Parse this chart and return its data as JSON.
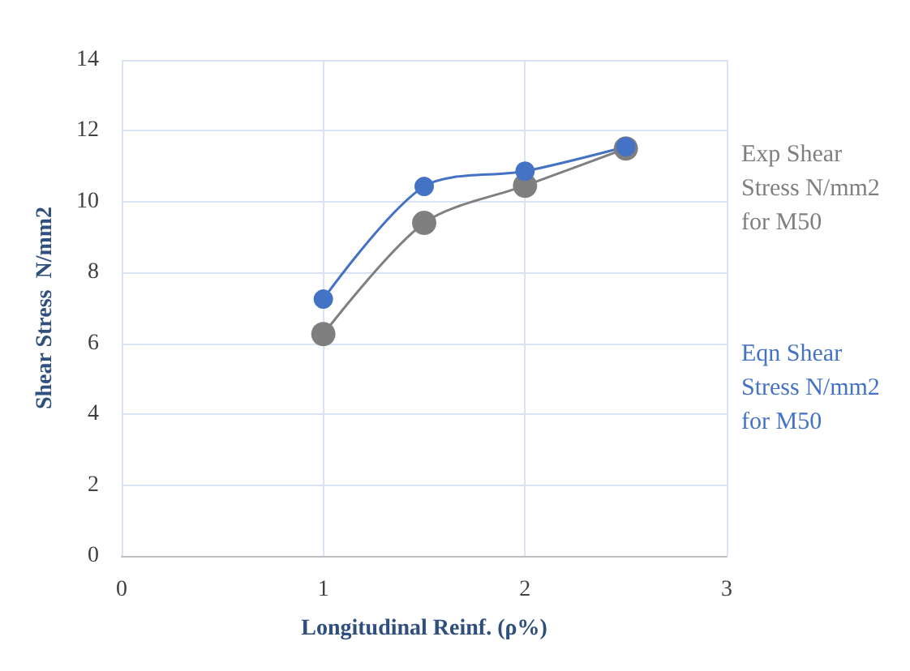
{
  "chart_data": {
    "type": "line",
    "xlabel": "Longitudinal Reinf. (ρ%)",
    "ylabel": "Shear Stress  N/mm2",
    "x": [
      1,
      1.5,
      2,
      2.5
    ],
    "series": [
      {
        "name": "Exp Shear Stress N/mm2 for M50",
        "color": "#7f7f7f",
        "values": [
          6.26,
          9.4,
          10.45,
          11.5
        ]
      },
      {
        "name": "Eqn Shear Stress N/mm2 for M50",
        "color": "#4472c4",
        "values": [
          7.25,
          10.43,
          10.86,
          11.55
        ]
      }
    ],
    "xlim": [
      0,
      3
    ],
    "xticks": [
      0,
      1,
      2,
      3
    ],
    "ylim": [
      0,
      14
    ],
    "yticks": [
      0,
      2,
      4,
      6,
      8,
      10,
      12,
      14
    ],
    "grid": true,
    "legend": "right",
    "marker": "circle"
  }
}
